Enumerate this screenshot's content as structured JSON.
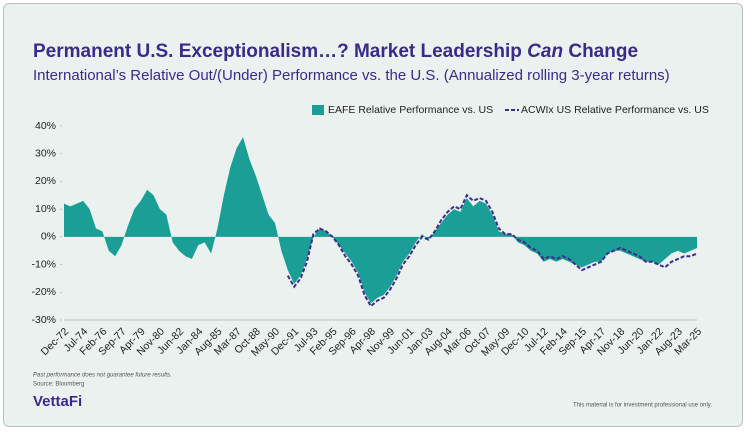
{
  "chart_data": {
    "type": "area-line",
    "title": {
      "before": "Permanent U.S. Exceptionalism…? Market Leadership ",
      "emphasis": "Can",
      "after": " Change"
    },
    "subtitle": "International’s Relative Out/(Under) Performance vs. the U.S. (Annualized rolling 3-year returns)",
    "categories": [
      "Dec-72",
      null,
      null,
      "Jul-74",
      null,
      null,
      "Feb-76",
      null,
      null,
      "Sep-77",
      null,
      null,
      "Apr-79",
      null,
      null,
      "Nov-80",
      null,
      null,
      "Jun-82",
      null,
      null,
      "Jan-84",
      null,
      null,
      "Aug-85",
      null,
      null,
      "Mar-87",
      null,
      null,
      "Oct-88",
      null,
      null,
      "May-90",
      null,
      null,
      "Dec-91",
      null,
      null,
      "Jul-93",
      null,
      null,
      "Feb-95",
      null,
      null,
      "Sep-96",
      null,
      null,
      "Apr-98",
      null,
      null,
      "Nov-99",
      null,
      null,
      "Jun-01",
      null,
      null,
      "Jan-03",
      null,
      null,
      "Aug-04",
      null,
      null,
      "Mar-06",
      null,
      null,
      "Oct-07",
      null,
      null,
      "May-09",
      null,
      null,
      "Dec-10",
      null,
      null,
      "Jul-12",
      null,
      null,
      "Feb-14",
      null,
      null,
      "Sep-15",
      null,
      null,
      "Apr-17",
      null,
      null,
      "Nov-18",
      null,
      null,
      "Jun-20",
      null,
      null,
      "Jan-22",
      null,
      null,
      "Aug-23",
      null,
      null,
      "Mar-25"
    ],
    "series": [
      {
        "name": "EAFE Relative Performance vs. US",
        "kind": "area",
        "color": "#1a9e96",
        "values": [
          12,
          11,
          12,
          13,
          10,
          3,
          2,
          -5,
          -7,
          -3,
          4,
          10,
          13,
          17,
          15,
          10,
          8,
          -2,
          -5,
          -7,
          -8,
          -3,
          -2,
          -6,
          3,
          15,
          25,
          32,
          36,
          28,
          22,
          15,
          8,
          5,
          -5,
          -12,
          -17,
          -14,
          -8,
          0,
          3,
          2,
          0,
          -3,
          -6,
          -9,
          -13,
          -20,
          -24,
          -22,
          -21,
          -18,
          -14,
          -9,
          -6,
          -2,
          1,
          -1,
          2,
          5,
          8,
          10,
          9,
          14,
          11,
          13,
          12,
          8,
          2,
          1,
          1,
          -2,
          -3,
          -5,
          -6,
          -9,
          -8,
          -9,
          -8,
          -9,
          -10,
          -11,
          -10,
          -9,
          -9,
          -6,
          -5,
          -5,
          -6,
          -7,
          -8,
          -9,
          -9,
          -10,
          -8,
          -6,
          -5,
          -6,
          -5,
          -4
        ]
      },
      {
        "name": "ACWIx US Relative Performance vs. US",
        "kind": "dashed-line",
        "color": "#3b2d8a",
        "values": [
          null,
          null,
          null,
          null,
          null,
          null,
          null,
          null,
          null,
          null,
          null,
          null,
          null,
          null,
          null,
          null,
          null,
          null,
          null,
          null,
          null,
          null,
          null,
          null,
          null,
          null,
          null,
          null,
          null,
          null,
          null,
          null,
          null,
          null,
          null,
          -14,
          -18,
          -15,
          -9,
          1,
          3,
          2,
          0,
          -3,
          -7,
          -10,
          -14,
          -21,
          -25,
          -23,
          -22,
          -19,
          -15,
          -10,
          -7,
          -3,
          0,
          -1,
          2,
          6,
          9,
          11,
          10,
          15,
          13,
          14,
          13,
          9,
          3,
          1,
          1,
          -1,
          -2,
          -4,
          -5,
          -8,
          -7,
          -8,
          -7,
          -8,
          -10,
          -12,
          -11,
          -10,
          -9,
          -6,
          -5,
          -4,
          -5,
          -6,
          -7,
          -9,
          -9,
          -10,
          -11,
          -9,
          -8,
          -7,
          -7,
          -6
        ]
      }
    ],
    "ylim": [
      -30,
      40
    ],
    "yticks": [
      {
        "value": -30,
        "label": "-30%"
      },
      {
        "value": -20,
        "label": "-20%"
      },
      {
        "value": -10,
        "label": "-10%"
      },
      {
        "value": 0,
        "label": "0%"
      },
      {
        "value": 10,
        "label": "10%"
      },
      {
        "value": 20,
        "label": "20%"
      },
      {
        "value": 30,
        "label": "30%"
      },
      {
        "value": 40,
        "label": "40%"
      }
    ],
    "grid": false,
    "legend": "top-right",
    "disclaimer": "Past performance does not guarantee future results.",
    "source": "Source: Bloomberg",
    "logo": "VettaFi",
    "usage_note": "This material is for investment professional use only."
  }
}
